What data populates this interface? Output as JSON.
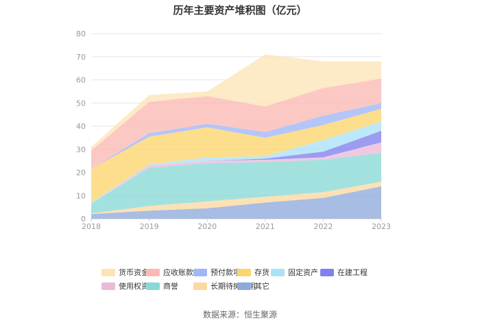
{
  "chart_data": {
    "type": "area",
    "stacked": true,
    "title": "历年主要资产堆积图（亿元）",
    "source": "数据来源：恒生聚源",
    "categories": [
      "2018",
      "2019",
      "2020",
      "2021",
      "2022",
      "2023"
    ],
    "ylim": [
      0,
      80
    ],
    "yticks": [
      0,
      10,
      20,
      30,
      40,
      50,
      60,
      70,
      80
    ],
    "xlabel": "",
    "ylabel": "",
    "grid": true,
    "legend_position": "bottom",
    "series": [
      {
        "name": "其它",
        "color": "#8eaadb",
        "values": [
          2,
          3.5,
          4.5,
          7,
          9,
          14
        ]
      },
      {
        "name": "长期待摊费用",
        "color": "#fbd9a0",
        "values": [
          0.3,
          2,
          3,
          2.5,
          2.5,
          2
        ]
      },
      {
        "name": "商誉",
        "color": "#89d9d6",
        "values": [
          4.2,
          16.5,
          16.5,
          15,
          14,
          12.5
        ]
      },
      {
        "name": "使用权资产",
        "color": "#ecbad9",
        "values": [
          0,
          1,
          1,
          1,
          1,
          4.5
        ]
      },
      {
        "name": "在建工程",
        "color": "#8080f0",
        "values": [
          0,
          0,
          0,
          0.5,
          2.5,
          5
        ]
      },
      {
        "name": "固定资产",
        "color": "#aae2f7",
        "values": [
          0.5,
          0.5,
          1.5,
          1,
          5,
          4
        ]
      },
      {
        "name": "存货",
        "color": "#fdd56d",
        "values": [
          14.5,
          12,
          13,
          8,
          6.5,
          5.5
        ]
      },
      {
        "name": "预付款项",
        "color": "#9fb6f7",
        "values": [
          0,
          1.5,
          1.5,
          2.5,
          4,
          2.5
        ]
      },
      {
        "name": "应收账款",
        "color": "#fbb9b4",
        "values": [
          8,
          13.5,
          12,
          11,
          12,
          10.5
        ]
      },
      {
        "name": "货币资金",
        "color": "#fde4b7",
        "values": [
          1.5,
          3,
          2,
          22.5,
          11.5,
          7.5
        ]
      }
    ],
    "legend_order": [
      "货币资金",
      "应收账款",
      "预付款项",
      "存货",
      "固定资产",
      "在建工程",
      "使用权资产",
      "商誉",
      "长期待摊费用",
      "其它"
    ]
  }
}
